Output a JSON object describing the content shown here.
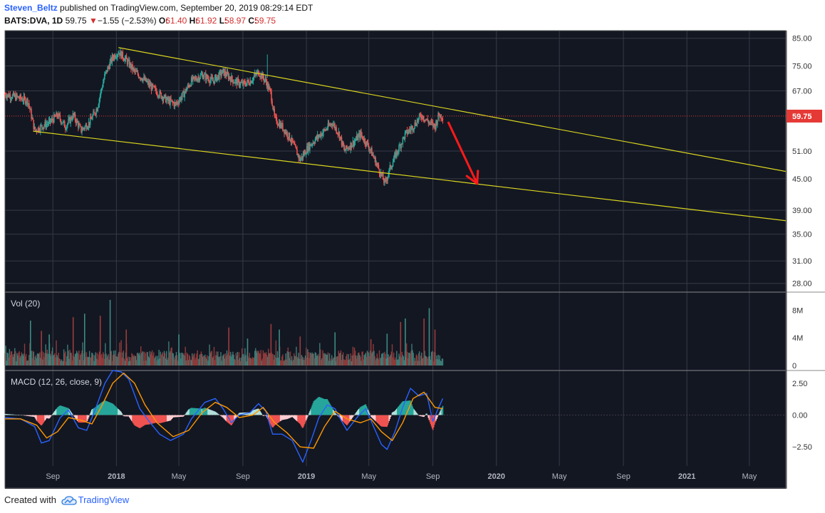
{
  "header": {
    "author": "Steven_Beltz",
    "published_text": "published on TradingView.com, September 20, 2019 08:29:14 EDT",
    "symbol": "BATS:DVA, 1D",
    "last": "59.75",
    "change_arrow": "▼",
    "change": "−1.55 (−2.53%)",
    "o_label": "O:",
    "o_value": "61.40",
    "h_label": "H:",
    "h_value": "61.92",
    "l_label": "L:",
    "l_value": "58.97",
    "c_label": "C:",
    "c_value": "59.75"
  },
  "footer": {
    "created_with": "Created with",
    "brand": "TradingView",
    "logo_icon": "tradingview-cloud-icon"
  },
  "colors": {
    "background": "#131722",
    "grid": "#363a45",
    "up": "#26a69a",
    "down": "#ef5350",
    "trendline": "#d9d51e",
    "macd_line": "#2962ff",
    "signal_line": "#ff9800",
    "arrow": "#ff1a1a",
    "price_label": "#e53935"
  },
  "chart_data": [
    {
      "type": "candlestick",
      "pane": "price",
      "y_scale": "log",
      "ylim": [
        27,
        88
      ],
      "y_ticks": [
        "85.00",
        "75.00",
        "67.00",
        "59.75",
        "51.00",
        "45.00",
        "39.00",
        "35.00",
        "31.00",
        "28.00"
      ],
      "last_price_label": "59.75",
      "x_labels": [
        "Sep",
        "2018",
        "May",
        "Sep",
        "2019",
        "May",
        "Sep",
        "2020",
        "May",
        "Sep",
        "2021",
        "May"
      ],
      "x_range": [
        "2017-06-01",
        "2021-07-10"
      ],
      "price_path": [
        [
          "2017-06-01",
          66
        ],
        [
          "2017-06-25",
          65
        ],
        [
          "2017-07-15",
          64
        ],
        [
          "2017-07-28",
          56
        ],
        [
          "2017-08-10",
          57
        ],
        [
          "2017-08-25",
          58
        ],
        [
          "2017-09-10",
          60
        ],
        [
          "2017-09-25",
          57
        ],
        [
          "2017-10-10",
          60
        ],
        [
          "2017-10-25",
          56
        ],
        [
          "2017-11-10",
          58
        ],
        [
          "2017-11-25",
          62
        ],
        [
          "2017-12-10",
          72
        ],
        [
          "2017-12-25",
          78
        ],
        [
          "2018-01-05",
          80
        ],
        [
          "2018-01-20",
          77
        ],
        [
          "2018-02-05",
          73
        ],
        [
          "2018-02-20",
          71
        ],
        [
          "2018-03-10",
          68
        ],
        [
          "2018-03-25",
          66
        ],
        [
          "2018-04-10",
          64
        ],
        [
          "2018-04-25",
          63
        ],
        [
          "2018-05-10",
          66
        ],
        [
          "2018-05-25",
          70
        ],
        [
          "2018-06-15",
          72
        ],
        [
          "2018-07-05",
          70
        ],
        [
          "2018-07-25",
          73
        ],
        [
          "2018-08-15",
          70
        ],
        [
          "2018-09-01",
          69
        ],
        [
          "2018-09-15",
          70
        ],
        [
          "2018-10-01",
          73
        ],
        [
          "2018-10-15",
          70
        ],
        [
          "2018-10-25",
          66
        ],
        [
          "2018-11-01",
          59
        ],
        [
          "2018-11-15",
          57
        ],
        [
          "2018-12-01",
          54
        ],
        [
          "2018-12-20",
          49
        ],
        [
          "2019-01-05",
          52
        ],
        [
          "2019-01-20",
          54
        ],
        [
          "2019-02-05",
          56
        ],
        [
          "2019-02-20",
          58
        ],
        [
          "2019-03-05",
          55
        ],
        [
          "2019-03-15",
          51
        ],
        [
          "2019-04-01",
          53
        ],
        [
          "2019-04-15",
          55
        ],
        [
          "2019-05-01",
          52
        ],
        [
          "2019-05-20",
          47
        ],
        [
          "2019-06-01",
          44
        ],
        [
          "2019-06-10",
          47
        ],
        [
          "2019-06-25",
          51
        ],
        [
          "2019-07-10",
          55
        ],
        [
          "2019-07-25",
          57
        ],
        [
          "2019-08-10",
          60
        ],
        [
          "2019-08-25",
          58
        ],
        [
          "2019-09-05",
          57
        ],
        [
          "2019-09-12",
          60
        ],
        [
          "2019-09-20",
          59.75
        ]
      ],
      "trendlines": [
        {
          "from": [
            "2018-01-05",
            81.5
          ],
          "to": [
            "2021-07-10",
            46.5
          ]
        },
        {
          "from": [
            "2017-07-25",
            55.8
          ],
          "to": [
            "2021-07-10",
            37.2
          ]
        }
      ],
      "annotation_arrow": {
        "from": [
          "2019-10-01",
          58
        ],
        "to": [
          "2019-11-25",
          44
        ]
      }
    },
    {
      "type": "bar",
      "pane": "volume",
      "title": "Vol (20)",
      "y_ticks": [
        "8M",
        "4M",
        "0"
      ],
      "ylim": [
        0,
        10
      ],
      "unit": "M",
      "x_range": [
        "2017-06-01",
        "2019-09-20"
      ],
      "spikes": [
        [
          "2017-07-20",
          6.5
        ],
        [
          "2017-08-10",
          5.0
        ],
        [
          "2017-08-25",
          4.5
        ],
        [
          "2017-10-10",
          7.0
        ],
        [
          "2017-11-01",
          7.5
        ],
        [
          "2017-12-01",
          7.2
        ],
        [
          "2017-12-20",
          9.5
        ],
        [
          "2018-01-20",
          5.2
        ],
        [
          "2018-05-01",
          4.5
        ],
        [
          "2018-08-05",
          5.5
        ],
        [
          "2018-09-10",
          3.9
        ],
        [
          "2018-10-25",
          6.0
        ],
        [
          "2018-11-10",
          5.2
        ],
        [
          "2018-12-20",
          4.2
        ],
        [
          "2019-02-25",
          4.8
        ],
        [
          "2019-05-05",
          3.8
        ],
        [
          "2019-06-05",
          4.6
        ],
        [
          "2019-07-01",
          6.3
        ],
        [
          "2019-07-10",
          6.8
        ],
        [
          "2019-08-15",
          6.8
        ],
        [
          "2019-08-25",
          8.3
        ],
        [
          "2019-09-05",
          5.2
        ]
      ]
    },
    {
      "type": "line",
      "pane": "macd",
      "title": "MACD (12, 26, close, 9)",
      "y_ticks": [
        "2.50",
        "0.00",
        "−2.50"
      ],
      "ylim": [
        -4,
        3.5
      ],
      "x_range": [
        "2017-06-01",
        "2019-09-20"
      ],
      "series": [
        {
          "role": "macd",
          "values": [
            [
              "2017-06-01",
              -0.2
            ],
            [
              "2017-07-01",
              -0.3
            ],
            [
              "2017-07-28",
              -0.9
            ],
            [
              "2017-08-10",
              -2.2
            ],
            [
              "2017-08-25",
              -2.0
            ],
            [
              "2017-09-15",
              -0.2
            ],
            [
              "2017-10-01",
              0.4
            ],
            [
              "2017-10-20",
              -1.0
            ],
            [
              "2017-11-05",
              -1.2
            ],
            [
              "2017-11-20",
              0.3
            ],
            [
              "2017-12-10",
              2.5
            ],
            [
              "2017-12-25",
              3.5
            ],
            [
              "2018-01-10",
              3.4
            ],
            [
              "2018-01-25",
              2.8
            ],
            [
              "2018-02-15",
              0.5
            ],
            [
              "2018-03-05",
              -0.5
            ],
            [
              "2018-03-25",
              -1.5
            ],
            [
              "2018-04-15",
              -2.0
            ],
            [
              "2018-05-10",
              -1.5
            ],
            [
              "2018-05-25",
              -0.3
            ],
            [
              "2018-06-20",
              1.0
            ],
            [
              "2018-07-10",
              1.3
            ],
            [
              "2018-07-25",
              0.5
            ],
            [
              "2018-08-10",
              -0.6
            ],
            [
              "2018-08-25",
              0.0
            ],
            [
              "2018-09-15",
              0.2
            ],
            [
              "2018-10-01",
              0.9
            ],
            [
              "2018-10-15",
              0.3
            ],
            [
              "2018-10-28",
              -1.5
            ],
            [
              "2018-11-15",
              -1.5
            ],
            [
              "2018-12-05",
              -2.0
            ],
            [
              "2018-12-25",
              -3.7
            ],
            [
              "2019-01-10",
              -2.0
            ],
            [
              "2019-01-25",
              -0.2
            ],
            [
              "2019-02-10",
              0.8
            ],
            [
              "2019-02-25",
              0.5
            ],
            [
              "2019-03-10",
              -0.5
            ],
            [
              "2019-03-20",
              -1.2
            ],
            [
              "2019-04-10",
              -0.1
            ],
            [
              "2019-04-25",
              0.5
            ],
            [
              "2019-05-10",
              -0.9
            ],
            [
              "2019-05-25",
              -2.3
            ],
            [
              "2019-06-05",
              -2.7
            ],
            [
              "2019-06-20",
              -1.3
            ],
            [
              "2019-07-05",
              0.6
            ],
            [
              "2019-07-20",
              2.1
            ],
            [
              "2019-08-05",
              1.5
            ],
            [
              "2019-08-20",
              1.7
            ],
            [
              "2019-09-01",
              -0.5
            ],
            [
              "2019-09-10",
              0.4
            ],
            [
              "2019-09-20",
              1.3
            ]
          ]
        },
        {
          "role": "signal",
          "values": [
            [
              "2017-06-01",
              -0.3
            ],
            [
              "2017-07-01",
              -0.3
            ],
            [
              "2017-08-01",
              -0.8
            ],
            [
              "2017-08-20",
              -1.8
            ],
            [
              "2017-09-10",
              -1.3
            ],
            [
              "2017-10-01",
              -0.2
            ],
            [
              "2017-10-25",
              -0.4
            ],
            [
              "2017-11-15",
              -0.7
            ],
            [
              "2017-12-05",
              0.8
            ],
            [
              "2017-12-25",
              2.5
            ],
            [
              "2018-01-15",
              3.3
            ],
            [
              "2018-02-05",
              2.5
            ],
            [
              "2018-02-25",
              0.8
            ],
            [
              "2018-03-20",
              -0.6
            ],
            [
              "2018-04-20",
              -1.7
            ],
            [
              "2018-05-20",
              -1.2
            ],
            [
              "2018-06-15",
              0.2
            ],
            [
              "2018-07-10",
              1.0
            ],
            [
              "2018-08-01",
              0.6
            ],
            [
              "2018-08-25",
              -0.2
            ],
            [
              "2018-09-20",
              0.0
            ],
            [
              "2018-10-10",
              0.6
            ],
            [
              "2018-11-01",
              -0.6
            ],
            [
              "2018-11-25",
              -1.4
            ],
            [
              "2018-12-20",
              -2.5
            ],
            [
              "2019-01-15",
              -2.6
            ],
            [
              "2019-02-05",
              -0.9
            ],
            [
              "2019-02-25",
              0.3
            ],
            [
              "2019-03-20",
              -0.3
            ],
            [
              "2019-04-15",
              -0.6
            ],
            [
              "2019-05-05",
              -0.3
            ],
            [
              "2019-05-25",
              -1.3
            ],
            [
              "2019-06-15",
              -2.0
            ],
            [
              "2019-07-05",
              -0.6
            ],
            [
              "2019-07-25",
              1.3
            ],
            [
              "2019-08-15",
              1.8
            ],
            [
              "2019-09-05",
              0.6
            ],
            [
              "2019-09-20",
              0.5
            ]
          ]
        }
      ]
    }
  ]
}
